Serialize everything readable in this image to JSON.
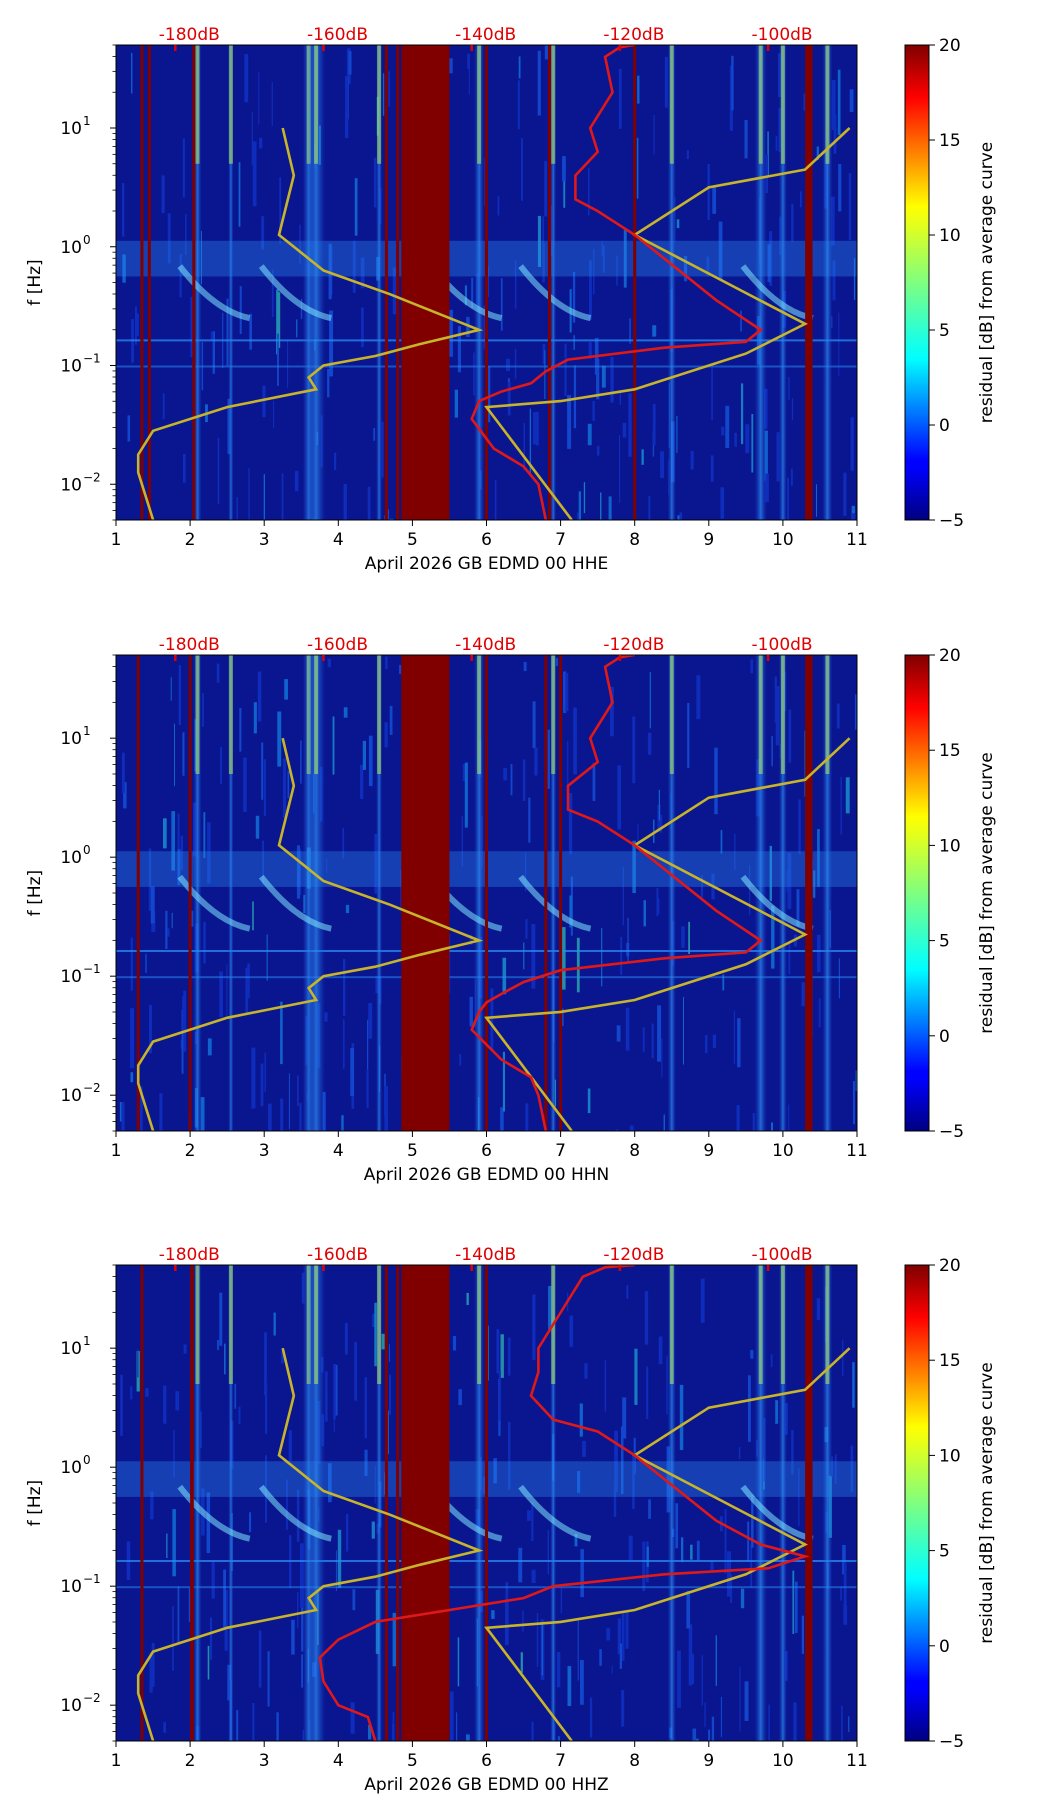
{
  "colors": {
    "field": "#0a1690",
    "saturated": "#800000",
    "noise_model": "#c8b42a",
    "psd_curve": "#e01818",
    "db_label": "#e00000"
  },
  "shared": {
    "ylabel": "f [Hz]",
    "colorbar_label": "residual [dB] from average curve",
    "colorbar_ticks": [
      "20",
      "15",
      "10",
      "5",
      "0",
      "−5"
    ],
    "x_ticks": [
      "1",
      "2",
      "3",
      "4",
      "5",
      "6",
      "7",
      "8",
      "9",
      "10",
      "11"
    ],
    "y_ticks": [
      {
        "base": "10",
        "exp": "1"
      },
      {
        "base": "10",
        "exp": "0"
      },
      {
        "base": "10",
        "exp": "−1"
      },
      {
        "base": "10",
        "exp": "−2"
      }
    ],
    "db_ticks": [
      "-180dB",
      "-160dB",
      "-140dB",
      "-120dB",
      "-100dB"
    ]
  },
  "chart_data": [
    {
      "type": "heatmap",
      "title": "",
      "xlabel": "April 2026 GB EDMD 00 HHE",
      "ylabel": "f [Hz]",
      "xlim": [
        1,
        11
      ],
      "ylim_hz": [
        0.005,
        50
      ],
      "top_axis_db": [
        -180,
        -160,
        -140,
        -120,
        -100
      ],
      "colorbar": {
        "label": "residual [dB] from average curve",
        "range": [
          -5,
          20
        ]
      },
      "saturated_days": [
        [
          4.85,
          5.5
        ],
        [
          10.3,
          10.4
        ]
      ],
      "vertical_lines": [
        1.35,
        1.45,
        2.05,
        4.65,
        4.8,
        6.0,
        6.85,
        8.0
      ],
      "psd_curve": {
        "x": [
          8.0,
          7.8,
          7.6,
          7.7,
          7.4,
          7.5,
          7.2,
          7.2,
          7.5,
          8.0,
          8.6,
          9.1,
          9.7,
          9.5,
          8.4,
          7.1,
          6.8,
          6.6,
          6.2,
          5.9,
          5.8,
          6.1,
          6.5,
          6.7,
          6.8
        ],
        "log_hz": [
          1.7,
          1.68,
          1.6,
          1.3,
          1.0,
          0.8,
          0.6,
          0.4,
          0.3,
          0.1,
          -0.2,
          -0.45,
          -0.7,
          -0.8,
          -0.85,
          -0.95,
          -1.05,
          -1.15,
          -1.22,
          -1.3,
          -1.45,
          -1.7,
          -1.85,
          -2.0,
          -2.3
        ]
      },
      "noise_model": {
        "x": [
          3.25,
          3.4,
          3.2,
          3.8,
          4.7,
          5.9,
          5.1,
          4.5,
          3.8,
          3.6,
          3.7,
          2.5,
          1.5,
          1.3,
          1.3,
          1.5
        ],
        "log_hz": [
          1.0,
          0.6,
          0.1,
          -0.2,
          -0.4,
          -0.7,
          -0.82,
          -0.92,
          -1.0,
          -1.1,
          -1.2,
          -1.35,
          -1.55,
          -1.75,
          -1.9,
          -2.3
        ]
      },
      "noise_model_right": {
        "x": [
          10.9,
          10.3,
          9.0,
          8.0,
          10.3,
          9.5,
          8.0,
          7.0,
          6.0,
          7.15
        ],
        "log_hz": [
          1.0,
          0.65,
          0.5,
          0.1,
          -0.65,
          -0.9,
          -1.2,
          -1.3,
          -1.35,
          -2.3
        ]
      }
    },
    {
      "type": "heatmap",
      "title": "",
      "xlabel": "April 2026 GB EDMD 00 HHN",
      "ylabel": "f [Hz]",
      "xlim": [
        1,
        11
      ],
      "ylim_hz": [
        0.005,
        50
      ],
      "top_axis_db": [
        -180,
        -160,
        -140,
        -120,
        -100
      ],
      "colorbar": {
        "label": "residual [dB] from average curve",
        "range": [
          -5,
          20
        ]
      },
      "saturated_days": [
        [
          4.85,
          5.5
        ],
        [
          10.3,
          10.4
        ]
      ],
      "vertical_lines": [
        1.3,
        2.0,
        6.0,
        6.8,
        7.0
      ],
      "psd_curve": {
        "x": [
          8.0,
          7.8,
          7.6,
          7.7,
          7.4,
          7.5,
          7.1,
          7.1,
          7.5,
          8.0,
          8.6,
          9.1,
          9.7,
          9.5,
          8.4,
          7.0,
          6.5,
          6.2,
          6.0,
          5.9,
          5.8,
          6.2,
          6.6,
          6.7,
          6.8
        ],
        "log_hz": [
          1.7,
          1.68,
          1.6,
          1.3,
          1.0,
          0.8,
          0.6,
          0.4,
          0.3,
          0.1,
          -0.2,
          -0.45,
          -0.7,
          -0.8,
          -0.85,
          -0.95,
          -1.05,
          -1.15,
          -1.22,
          -1.3,
          -1.45,
          -1.7,
          -1.85,
          -2.0,
          -2.3
        ]
      },
      "noise_model": {
        "x": [
          3.25,
          3.4,
          3.2,
          3.8,
          4.7,
          5.9,
          5.1,
          4.5,
          3.8,
          3.6,
          3.7,
          2.5,
          1.5,
          1.3,
          1.3,
          1.5
        ],
        "log_hz": [
          1.0,
          0.6,
          0.1,
          -0.2,
          -0.4,
          -0.7,
          -0.82,
          -0.92,
          -1.0,
          -1.1,
          -1.2,
          -1.35,
          -1.55,
          -1.75,
          -1.9,
          -2.3
        ]
      },
      "noise_model_right": {
        "x": [
          10.9,
          10.3,
          9.0,
          8.0,
          10.3,
          9.5,
          8.0,
          7.0,
          6.0,
          7.15
        ],
        "log_hz": [
          1.0,
          0.65,
          0.5,
          0.1,
          -0.65,
          -0.9,
          -1.2,
          -1.3,
          -1.35,
          -2.3
        ]
      }
    },
    {
      "type": "heatmap",
      "title": "",
      "xlabel": "April 2026 GB EDMD 00 HHZ",
      "ylabel": "f [Hz]",
      "xlim": [
        1,
        11
      ],
      "ylim_hz": [
        0.005,
        50
      ],
      "top_axis_db": [
        -180,
        -160,
        -140,
        -120,
        -100
      ],
      "colorbar": {
        "label": "residual [dB] from average curve",
        "range": [
          -5,
          20
        ]
      },
      "saturated_days": [
        [
          4.85,
          5.5
        ],
        [
          2.0,
          2.05
        ],
        [
          10.3,
          10.4
        ]
      ],
      "vertical_lines": [
        1.35,
        4.65,
        4.8,
        6.0
      ],
      "psd_curve": {
        "x": [
          8.0,
          7.6,
          7.3,
          7.0,
          6.7,
          6.7,
          6.6,
          6.9,
          7.5,
          8.0,
          8.6,
          9.1,
          9.7,
          10.3,
          9.8,
          8.4,
          6.9,
          6.5,
          5.5,
          4.5,
          4.0,
          3.75,
          3.8,
          4.0,
          4.4,
          4.5
        ],
        "log_hz": [
          1.7,
          1.68,
          1.6,
          1.3,
          1.0,
          0.8,
          0.6,
          0.4,
          0.3,
          0.1,
          -0.2,
          -0.45,
          -0.65,
          -0.75,
          -0.85,
          -0.9,
          -1.0,
          -1.1,
          -1.2,
          -1.3,
          -1.45,
          -1.6,
          -1.8,
          -2.0,
          -2.1,
          -2.3
        ]
      },
      "noise_model": {
        "x": [
          3.25,
          3.4,
          3.2,
          3.8,
          4.7,
          5.9,
          5.1,
          4.5,
          3.8,
          3.6,
          3.7,
          2.5,
          1.5,
          1.3,
          1.3,
          1.5
        ],
        "log_hz": [
          1.0,
          0.6,
          0.1,
          -0.2,
          -0.4,
          -0.7,
          -0.82,
          -0.92,
          -1.0,
          -1.1,
          -1.2,
          -1.35,
          -1.55,
          -1.75,
          -1.9,
          -2.3
        ]
      },
      "noise_model_right": {
        "x": [
          10.9,
          10.3,
          9.0,
          8.0,
          10.3,
          9.5,
          8.0,
          7.0,
          6.0,
          7.15
        ],
        "log_hz": [
          1.0,
          0.65,
          0.5,
          0.1,
          -0.65,
          -0.9,
          -1.2,
          -1.3,
          -1.35,
          -2.3
        ]
      }
    }
  ]
}
